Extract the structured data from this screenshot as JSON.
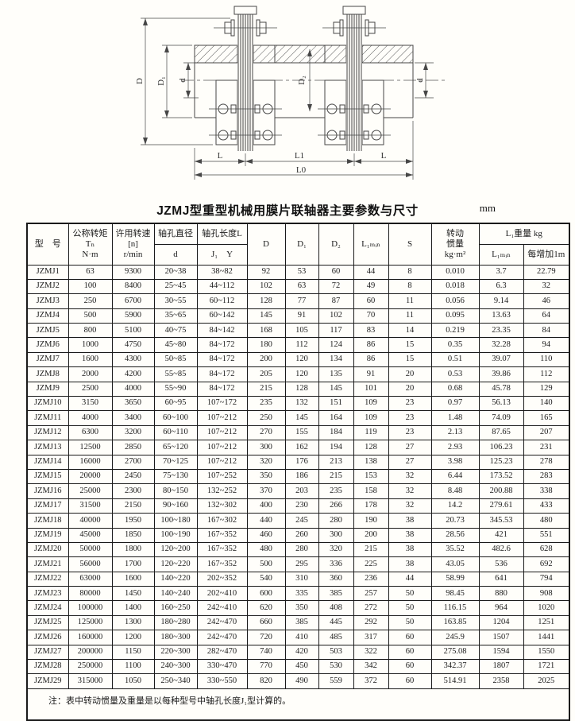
{
  "title": {
    "text": "JZMJ型重型机械用膜片联轴器主要参数与尺寸",
    "unit": "mm"
  },
  "drawing": {
    "labels": {
      "D": "D",
      "D1": "D₁",
      "d_left": "d",
      "D2": "D₂",
      "d_right": "d",
      "L_left": "L",
      "L1": "L1",
      "L_right": "L",
      "L0": "L0"
    }
  },
  "table": {
    "headers": {
      "model": "型　号",
      "torque": "公称转矩\nTₙ\nN·m",
      "speed": "许用转速\n[n]\nr/min",
      "bore_dia": "轴孔直径",
      "bore_dia_sub": "d",
      "bore_len": "轴孔长度L",
      "bore_len_sub": "J₁　Y",
      "D": "D",
      "D1": "D₁",
      "D2": "D₂",
      "L1min": "L₁ₘᵢₙ",
      "S": "S",
      "inertia": "转动\n惯量\nkg·m²",
      "weight_group": "L₁重量  kg",
      "weight_l1min": "L₁ₘᵢₙ",
      "weight_per_m": "每增加1m"
    },
    "rows": [
      [
        "JZMJ1",
        "63",
        "9300",
        "20~38",
        "38~82",
        "92",
        "53",
        "60",
        "44",
        "8",
        "0.010",
        "3.7",
        "22.79"
      ],
      [
        "JZMJ2",
        "100",
        "8400",
        "25~45",
        "44~112",
        "102",
        "63",
        "72",
        "49",
        "8",
        "0.018",
        "6.3",
        "32"
      ],
      [
        "JZMJ3",
        "250",
        "6700",
        "30~55",
        "60~112",
        "128",
        "77",
        "87",
        "60",
        "11",
        "0.056",
        "9.14",
        "46"
      ],
      [
        "JZMJ4",
        "500",
        "5900",
        "35~65",
        "60~142",
        "145",
        "91",
        "102",
        "70",
        "11",
        "0.095",
        "13.63",
        "64"
      ],
      [
        "JZMJ5",
        "800",
        "5100",
        "40~75",
        "84~142",
        "168",
        "105",
        "117",
        "83",
        "14",
        "0.219",
        "23.35",
        "84"
      ],
      [
        "JZMJ6",
        "1000",
        "4750",
        "45~80",
        "84~172",
        "180",
        "112",
        "124",
        "86",
        "15",
        "0.35",
        "32.28",
        "94"
      ],
      [
        "JZMJ7",
        "1600",
        "4300",
        "50~85",
        "84~172",
        "200",
        "120",
        "134",
        "86",
        "15",
        "0.51",
        "39.07",
        "110"
      ],
      [
        "JZMJ8",
        "2000",
        "4200",
        "55~85",
        "84~172",
        "205",
        "120",
        "135",
        "91",
        "20",
        "0.53",
        "39.86",
        "112"
      ],
      [
        "JZMJ9",
        "2500",
        "4000",
        "55~90",
        "84~172",
        "215",
        "128",
        "145",
        "101",
        "20",
        "0.68",
        "45.78",
        "129"
      ],
      [
        "JZMJ10",
        "3150",
        "3650",
        "60~95",
        "107~172",
        "235",
        "132",
        "151",
        "109",
        "23",
        "0.97",
        "56.13",
        "140"
      ],
      [
        "JZMJ11",
        "4000",
        "3400",
        "60~100",
        "107~212",
        "250",
        "145",
        "164",
        "109",
        "23",
        "1.48",
        "74.09",
        "165"
      ],
      [
        "JZMJ12",
        "6300",
        "3200",
        "60~110",
        "107~212",
        "270",
        "155",
        "184",
        "119",
        "23",
        "2.13",
        "87.65",
        "207"
      ],
      [
        "JZMJ13",
        "12500",
        "2850",
        "65~120",
        "107~212",
        "300",
        "162",
        "194",
        "128",
        "27",
        "2.93",
        "106.23",
        "231"
      ],
      [
        "JZMJ14",
        "16000",
        "2700",
        "70~125",
        "107~212",
        "320",
        "176",
        "213",
        "138",
        "27",
        "3.98",
        "125.23",
        "278"
      ],
      [
        "JZMJ15",
        "20000",
        "2450",
        "75~130",
        "107~252",
        "350",
        "186",
        "215",
        "153",
        "32",
        "6.44",
        "173.52",
        "283"
      ],
      [
        "JZMJ16",
        "25000",
        "2300",
        "80~150",
        "132~252",
        "370",
        "203",
        "235",
        "158",
        "32",
        "8.48",
        "200.88",
        "338"
      ],
      [
        "JZMJ17",
        "31500",
        "2150",
        "90~160",
        "132~302",
        "400",
        "230",
        "266",
        "178",
        "32",
        "14.2",
        "279.61",
        "433"
      ],
      [
        "JZMJ18",
        "40000",
        "1950",
        "100~180",
        "167~302",
        "440",
        "245",
        "280",
        "190",
        "38",
        "20.73",
        "345.53",
        "480"
      ],
      [
        "JZMJ19",
        "45000",
        "1850",
        "100~190",
        "167~352",
        "460",
        "260",
        "300",
        "200",
        "38",
        "28.56",
        "421",
        "551"
      ],
      [
        "JZMJ20",
        "50000",
        "1800",
        "120~200",
        "167~352",
        "480",
        "280",
        "320",
        "215",
        "38",
        "35.52",
        "482.6",
        "628"
      ],
      [
        "JZMJ21",
        "56000",
        "1700",
        "120~220",
        "167~352",
        "500",
        "295",
        "336",
        "225",
        "38",
        "43.05",
        "536",
        "692"
      ],
      [
        "JZMJ22",
        "63000",
        "1600",
        "140~220",
        "202~352",
        "540",
        "310",
        "360",
        "236",
        "44",
        "58.99",
        "641",
        "794"
      ],
      [
        "JZMJ23",
        "80000",
        "1450",
        "140~240",
        "202~410",
        "600",
        "335",
        "385",
        "257",
        "50",
        "98.45",
        "880",
        "908"
      ],
      [
        "JZMJ24",
        "100000",
        "1400",
        "160~250",
        "242~410",
        "620",
        "350",
        "408",
        "272",
        "50",
        "116.15",
        "964",
        "1020"
      ],
      [
        "JZMJ25",
        "125000",
        "1300",
        "180~280",
        "242~470",
        "660",
        "385",
        "445",
        "292",
        "50",
        "163.85",
        "1204",
        "1251"
      ],
      [
        "JZMJ26",
        "160000",
        "1200",
        "180~300",
        "242~470",
        "720",
        "410",
        "485",
        "317",
        "60",
        "245.9",
        "1507",
        "1441"
      ],
      [
        "JZMJ27",
        "200000",
        "1150",
        "220~300",
        "282~470",
        "740",
        "420",
        "503",
        "322",
        "60",
        "275.08",
        "1594",
        "1550"
      ],
      [
        "JZMJ28",
        "250000",
        "1100",
        "240~300",
        "330~470",
        "770",
        "450",
        "530",
        "342",
        "60",
        "342.37",
        "1807",
        "1721"
      ],
      [
        "JZMJ29",
        "315000",
        "1050",
        "250~340",
        "330~550",
        "820",
        "490",
        "559",
        "372",
        "60",
        "514.91",
        "2358",
        "2025"
      ]
    ],
    "note": "注：表中转动惯量及重量是以每种型号中轴孔长度J₁型计算的。"
  }
}
